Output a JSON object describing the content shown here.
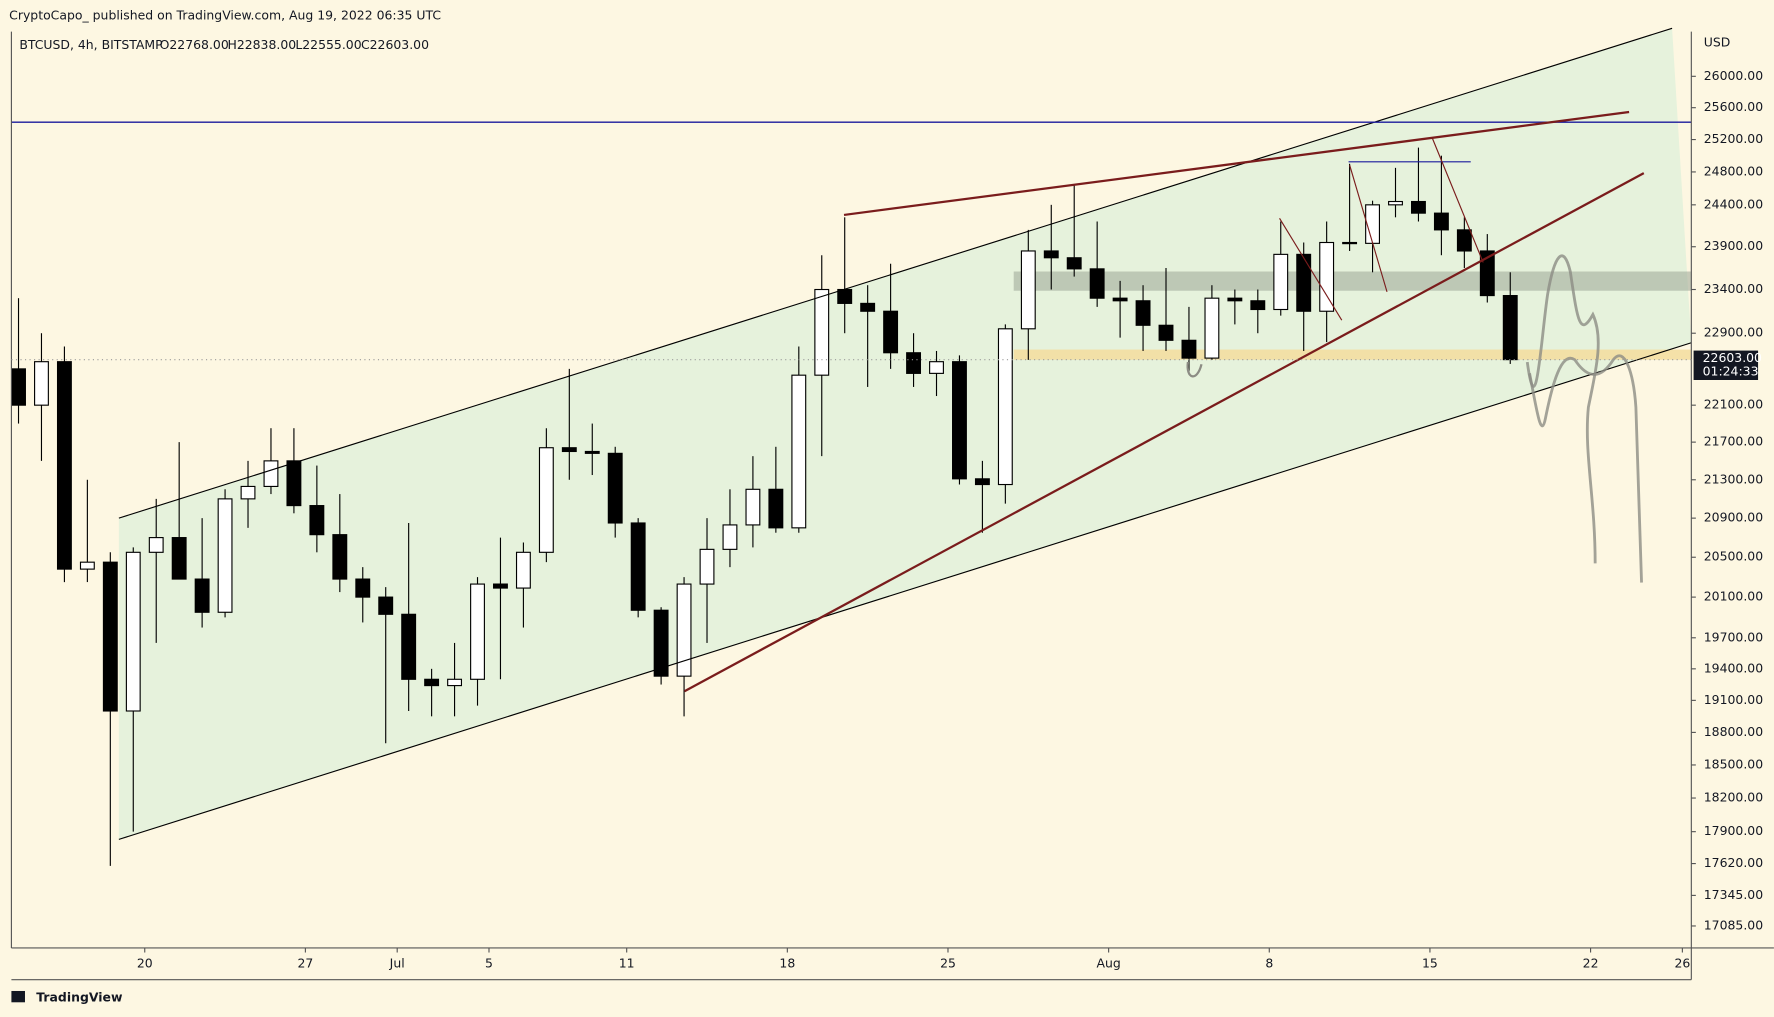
{
  "header": {
    "published": "CryptoCapo_  published on TradingView.com, Aug 19, 2022 06:35 UTC",
    "symbol": "BTCUSD, 4h, BITSTAMP",
    "open": "O22768.00",
    "high": "H22838.00",
    "low": "L22555.00",
    "close": "C22603.00",
    "countdown": "01:24:33",
    "footer": "TradingView"
  },
  "chart_data": {
    "type": "candlestick",
    "log": true,
    "y_axis_label": "USD",
    "xlim": [
      -5.81,
      67.39
    ],
    "ylim": [
      16900,
      26580
    ],
    "xticks": [
      {
        "value": 0,
        "label": "20"
      },
      {
        "value": 7,
        "label": "27"
      },
      {
        "value": 11,
        "label": "Jul"
      },
      {
        "value": 15,
        "label": "5"
      },
      {
        "value": 21,
        "label": "11"
      },
      {
        "value": 28,
        "label": "18"
      },
      {
        "value": 35,
        "label": "25"
      },
      {
        "value": 42,
        "label": "Aug"
      },
      {
        "value": 49,
        "label": "8"
      },
      {
        "value": 56,
        "label": "15"
      },
      {
        "value": 63,
        "label": "22"
      },
      {
        "value": 67,
        "label": "26"
      }
    ],
    "yticks": [
      {
        "value": 26000,
        "label": "26000.00"
      },
      {
        "value": 25600,
        "label": "25600.00"
      },
      {
        "value": 25200,
        "label": "25200.00"
      },
      {
        "value": 24800,
        "label": "24800.00"
      },
      {
        "value": 24400,
        "label": "24400.00"
      },
      {
        "value": 23900,
        "label": "23900.00"
      },
      {
        "value": 23400,
        "label": "23400.00"
      },
      {
        "value": 22900,
        "label": "22900.00"
      },
      {
        "value": 22100,
        "label": "22100.00"
      },
      {
        "value": 21700,
        "label": "21700.00"
      },
      {
        "value": 21300,
        "label": "21300.00"
      },
      {
        "value": 20900,
        "label": "20900.00"
      },
      {
        "value": 20500,
        "label": "20500.00"
      },
      {
        "value": 20100,
        "label": "20100.00"
      },
      {
        "value": 19700,
        "label": "19700.00"
      },
      {
        "value": 19400,
        "label": "19400.00"
      },
      {
        "value": 19100,
        "label": "19100.00"
      },
      {
        "value": 18800,
        "label": "18800.00"
      },
      {
        "value": 18500,
        "label": "18500.00"
      },
      {
        "value": 18200,
        "label": "18200.00"
      },
      {
        "value": 17900,
        "label": "17900.00"
      },
      {
        "value": 17620,
        "label": "17620.00"
      },
      {
        "value": 17345,
        "label": "17345.00"
      },
      {
        "value": 17085,
        "label": "17085.00"
      }
    ],
    "last_price": {
      "value": 22603,
      "label": "22603.00"
    },
    "up_color": "#ffffff",
    "down_color": "#000000",
    "x": [
      -6,
      -5,
      -4,
      -3,
      -2,
      -1,
      0,
      1,
      2,
      3,
      4,
      5,
      6,
      7,
      8,
      9,
      10,
      11,
      12,
      13,
      14,
      15,
      16,
      17,
      18,
      19,
      20,
      21,
      22,
      23,
      24,
      25,
      26,
      27,
      28,
      29,
      30,
      31,
      32,
      33,
      34,
      35,
      36,
      37,
      38,
      39,
      40,
      41,
      42,
      43,
      44,
      45,
      46,
      47,
      48,
      49,
      50,
      51,
      52,
      53,
      54,
      55,
      56,
      57,
      58,
      59
    ],
    "open": [
      22500,
      22100,
      22580,
      20380,
      20450,
      19000,
      20550,
      20700,
      20280,
      19950,
      21100,
      21230,
      21500,
      21030,
      20730,
      20280,
      20100,
      19930,
      19300,
      19240,
      19300,
      20230,
      20190,
      20550,
      21640,
      21600,
      21580,
      20850,
      19970,
      19330,
      20230,
      20580,
      20830,
      21200,
      20800,
      22430,
      23400,
      23240,
      23150,
      22680,
      22450,
      22580,
      21310,
      21250,
      22950,
      23850,
      23770,
      23640,
      23300,
      23270,
      22990,
      22820,
      22620,
      23300,
      23270,
      23170,
      23810,
      23150,
      23950,
      23940,
      24400,
      24440,
      24300,
      24100,
      23850,
      23330
    ],
    "high": [
      23300,
      22900,
      22750,
      21300,
      20550,
      20600,
      21100,
      21700,
      20900,
      21200,
      21500,
      21850,
      21850,
      21450,
      21150,
      20400,
      20200,
      20850,
      19400,
      19650,
      20300,
      20700,
      20650,
      21850,
      22500,
      21900,
      21650,
      20900,
      20000,
      20300,
      20900,
      21200,
      21550,
      21650,
      22750,
      23800,
      24250,
      23450,
      23700,
      22900,
      22700,
      22650,
      21500,
      23000,
      24100,
      24400,
      24650,
      24200,
      23500,
      23450,
      23650,
      23200,
      23450,
      23400,
      23400,
      24200,
      23950,
      24200,
      24900,
      24450,
      24850,
      25100,
      25000,
      24250,
      24050,
      23600
    ],
    "low": [
      21900,
      21500,
      20250,
      20250,
      17600,
      17900,
      19650,
      20350,
      19800,
      19900,
      20800,
      21150,
      20950,
      20550,
      20150,
      19850,
      18700,
      19000,
      18950,
      18950,
      19050,
      19300,
      19800,
      20450,
      21300,
      21350,
      20700,
      19900,
      19250,
      18950,
      19650,
      20400,
      20600,
      20750,
      20750,
      21550,
      22900,
      22300,
      22500,
      22300,
      22200,
      21250,
      20750,
      21050,
      22600,
      23400,
      23550,
      23200,
      22850,
      22700,
      22700,
      22450,
      22600,
      23000,
      22900,
      23100,
      22700,
      22800,
      23850,
      23600,
      24250,
      24200,
      23800,
      23650,
      23250,
      22555
    ],
    "close": [
      22100,
      22580,
      20380,
      20450,
      19000,
      20550,
      20700,
      20280,
      19950,
      21100,
      21230,
      21500,
      21030,
      20730,
      20280,
      20100,
      19930,
      19300,
      19240,
      19300,
      20230,
      20190,
      20550,
      21640,
      21600,
      21580,
      20850,
      19970,
      19330,
      20230,
      20580,
      20830,
      21200,
      20800,
      22430,
      23400,
      23240,
      23150,
      22680,
      22450,
      22580,
      21310,
      21250,
      22950,
      23850,
      23770,
      23640,
      23300,
      23270,
      22990,
      22820,
      22620,
      23300,
      23270,
      23170,
      23810,
      23150,
      23950,
      23940,
      24400,
      24440,
      24300,
      24100,
      23850,
      23330,
      22603
    ]
  }
}
